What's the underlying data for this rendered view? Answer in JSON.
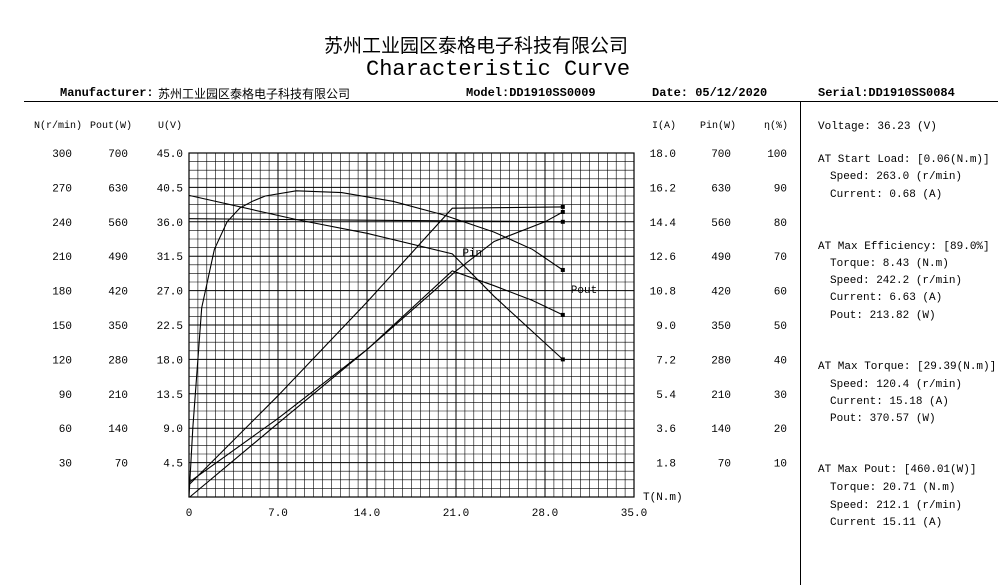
{
  "header": {
    "company_cn": "苏州工业园区泰格电子科技有限公司",
    "title": "Characteristic Curve",
    "manufacturer_label": "Manufacturer:",
    "manufacturer_value": "苏州工业园区泰格电子科技有限公司",
    "model": "Model:DD1910SS0009",
    "date": "Date: 05/12/2020",
    "serial": "Serial:DD1910SS0084"
  },
  "columns": {
    "n": "N(r/min)",
    "pout": "Pout(W)",
    "u": "U(V)",
    "i": "I(A)",
    "pin": "Pin(W)",
    "eta": "η(%)",
    "t": "T(N.m)"
  },
  "side": {
    "voltage": "Voltage:   36.23 (V)",
    "start_title": "AT Start Load: [0.06(N.m)]",
    "start_speed": "Speed: 263.0 (r/min)",
    "start_current": "Current: 0.68 (A)",
    "eff_title": "AT Max Efficiency: [89.0%]",
    "eff_torque": "Torque: 8.43 (N.m)",
    "eff_speed": "Speed: 242.2 (r/min)",
    "eff_current": "Current: 6.63 (A)",
    "eff_pout": "Pout: 213.82 (W)",
    "torque_title": "AT Max Torque: [29.39(N.m)]",
    "torque_speed": "Speed: 120.4 (r/min)",
    "torque_current": "Current: 15.18 (A)",
    "torque_pout": "Pout: 370.57 (W)",
    "pout_title": "AT Max Pout: [460.01(W)]",
    "pout_torque": "Torque: 20.71 (N.m)",
    "pout_speed": "Speed: 212.1 (r/min)",
    "pout_current": "Current 15.11 (A)"
  },
  "chart_data": {
    "type": "line",
    "title": "Characteristic Curve",
    "xlabel": "T(N.m)",
    "xlim": [
      0,
      35
    ],
    "x_ticks": [
      "0",
      "7.0",
      "14.0",
      "21.0",
      "28.0",
      "35.0"
    ],
    "grid": true,
    "left_axes": {
      "N": [
        "300",
        "270",
        "240",
        "210",
        "180",
        "150",
        "120",
        "90",
        "60",
        "30"
      ],
      "Pout": [
        "700",
        "630",
        "560",
        "490",
        "420",
        "350",
        "280",
        "210",
        "140",
        "70"
      ],
      "U": [
        "45.0",
        "40.5",
        "36.0",
        "31.5",
        "27.0",
        "22.5",
        "18.0",
        "13.5",
        "9.0",
        "4.5"
      ]
    },
    "right_axes": {
      "I": [
        "18.0",
        "16.2",
        "14.4",
        "12.6",
        "10.8",
        "9.0",
        "7.2",
        "5.4",
        "3.6",
        "1.8"
      ],
      "Pin": [
        "700",
        "630",
        "560",
        "490",
        "420",
        "350",
        "280",
        "210",
        "140",
        "70"
      ],
      "eta": [
        "100",
        "90",
        "80",
        "70",
        "60",
        "50",
        "40",
        "30",
        "20",
        "10"
      ]
    },
    "series": [
      {
        "name": "Pin",
        "label": "Pin",
        "scale_max": 700,
        "x": [
          0,
          7,
          14,
          19.3,
          21,
          24,
          28,
          29.4
        ],
        "y": [
          30,
          160,
          300,
          420,
          460,
          520,
          560,
          580
        ]
      },
      {
        "name": "Pout",
        "label": "Pout",
        "scale_max": 700,
        "x": [
          0.06,
          7,
          14,
          20.71,
          24,
          27,
          29.4
        ],
        "y": [
          0,
          150,
          300,
          460.01,
          430,
          400,
          370.57
        ]
      },
      {
        "name": "N",
        "scale_max": 300,
        "x": [
          0,
          8.43,
          14,
          20.71,
          24,
          29.4
        ],
        "y": [
          263,
          242,
          230,
          212,
          175,
          120
        ]
      },
      {
        "name": "I",
        "scale_max": 18,
        "x": [
          0.06,
          7,
          14,
          20.71,
          29.4
        ],
        "y": [
          0.68,
          5.3,
          10.2,
          15.11,
          15.18
        ]
      },
      {
        "name": "η",
        "scale_max": 100,
        "x": [
          0,
          0.3,
          1,
          2,
          3,
          4,
          5,
          6,
          8.43,
          12,
          16,
          20,
          24,
          27,
          29.4
        ],
        "y": [
          0,
          20,
          55,
          72,
          80,
          84,
          86,
          87.5,
          89,
          88.5,
          86,
          82,
          77,
          72,
          66
        ]
      },
      {
        "name": "U",
        "scale_max": 45,
        "x": [
          0,
          29.4
        ],
        "y": [
          36.4,
          36.0
        ]
      }
    ]
  }
}
